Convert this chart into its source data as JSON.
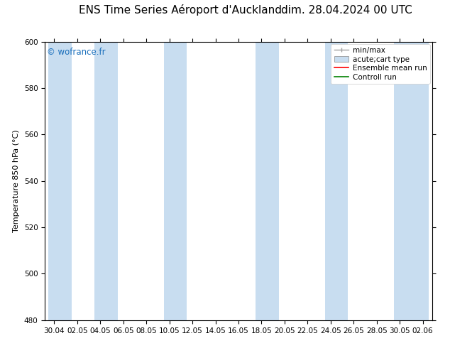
{
  "title_left": "ENS Time Series Aéroport d'Auckland",
  "title_right": "dim. 28.04.2024 00 UTC",
  "ylabel": "Temperature 850 hPa (°C)",
  "ylim": [
    480,
    600
  ],
  "yticks": [
    480,
    500,
    520,
    540,
    560,
    580,
    600
  ],
  "xtick_labels": [
    "30.04",
    "02.05",
    "04.05",
    "06.05",
    "08.05",
    "10.05",
    "12.05",
    "14.05",
    "16.05",
    "18.05",
    "20.05",
    "22.05",
    "24.05",
    "26.05",
    "28.05",
    "30.05",
    "02.06"
  ],
  "shaded_band_color": "#c8ddf0",
  "background_color": "#ffffff",
  "watermark_text": "© wofrance.fr",
  "watermark_color": "#1a6fbc",
  "ensemble_mean_color": "#ff0000",
  "control_run_color": "#008000",
  "minmax_color": "#a0a0a0",
  "title_fontsize": 11,
  "tick_fontsize": 7.5,
  "legend_fontsize": 7.5,
  "ylabel_fontsize": 8,
  "shaded_intervals": [
    [
      0,
      2
    ],
    [
      4,
      6
    ],
    [
      10,
      12
    ],
    [
      18,
      20
    ],
    [
      24,
      26
    ],
    [
      30,
      33
    ]
  ]
}
